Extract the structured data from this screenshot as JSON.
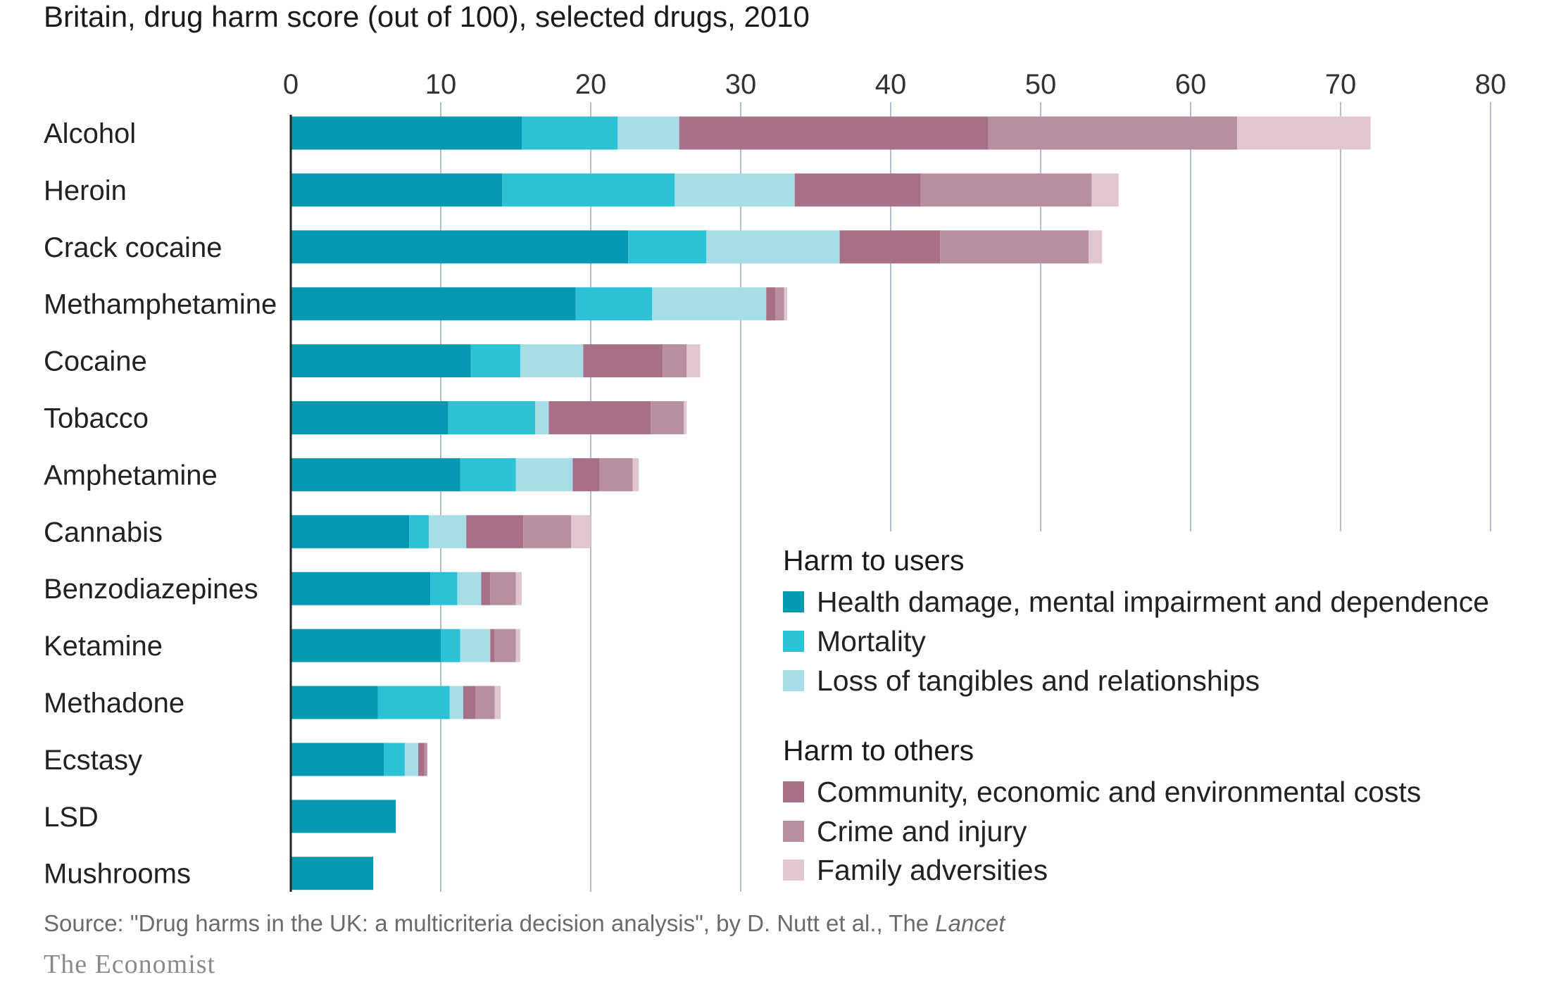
{
  "chart_data": {
    "type": "bar",
    "orientation": "horizontal",
    "stacked": true,
    "title": "Britain, drug harm score (out of 100), selected drugs, 2010",
    "xlim": [
      0,
      80
    ],
    "xticks": [
      "0",
      "10",
      "20",
      "30",
      "40",
      "50",
      "60",
      "70",
      "80"
    ],
    "grid": true,
    "categories": [
      "Alcohol",
      "Heroin",
      "Crack cocaine",
      "Methamphetamine",
      "Cocaine",
      "Tobacco",
      "Amphetamine",
      "Cannabis",
      "Benzodiazepines",
      "Ketamine",
      "Methadone",
      "Ecstasy",
      "LSD",
      "Mushrooms"
    ],
    "series": [
      {
        "name": "Health damage, mental impairment and dependence",
        "group": "Harm to users",
        "color": "#0598b2",
        "values": [
          15.4,
          14.1,
          22.5,
          19.0,
          12.0,
          10.5,
          11.3,
          7.9,
          9.3,
          10.0,
          5.8,
          6.2,
          7.0,
          5.5
        ]
      },
      {
        "name": "Mortality",
        "group": "Harm to users",
        "color": "#2dc1d6",
        "values": [
          6.4,
          11.5,
          5.2,
          5.1,
          3.3,
          5.8,
          3.7,
          1.3,
          1.8,
          1.3,
          4.8,
          1.4,
          0.0,
          0.0
        ]
      },
      {
        "name": "Loss of tangibles and relationships",
        "group": "Harm to users",
        "color": "#a7dee6",
        "values": [
          4.1,
          8.0,
          8.9,
          7.6,
          4.2,
          0.9,
          3.8,
          2.5,
          1.6,
          2.0,
          0.9,
          0.9,
          0.0,
          0.0
        ]
      },
      {
        "name": "Community, economic and environmental costs",
        "group": "Harm to others",
        "color": "#a87088",
        "values": [
          20.6,
          8.4,
          6.7,
          0.6,
          5.3,
          6.8,
          1.8,
          3.8,
          0.6,
          0.3,
          0.8,
          0.4,
          0.0,
          0.0
        ]
      },
      {
        "name": "Crime and injury",
        "group": "Harm to others",
        "color": "#b88fa1",
        "values": [
          16.6,
          11.4,
          9.9,
          0.6,
          1.6,
          2.2,
          2.2,
          3.2,
          1.7,
          1.4,
          1.3,
          0.2,
          0.0,
          0.0
        ]
      },
      {
        "name": "Family adversities",
        "group": "Harm to others",
        "color": "#dfc6d0",
        "values": [
          8.9,
          1.8,
          0.9,
          0.2,
          0.9,
          0.2,
          0.4,
          1.3,
          0.4,
          0.3,
          0.4,
          0.0,
          0.0,
          0.0
        ]
      }
    ],
    "legend": {
      "placement": "bottom-right",
      "groups": [
        {
          "heading": "Harm to users",
          "items": [
            0,
            1,
            2
          ]
        },
        {
          "heading": "Harm to others",
          "items": [
            3,
            4,
            5
          ]
        }
      ]
    }
  },
  "source": {
    "text": "Source: \"Drug harms in the UK: a multicriteria decision analysis\", by D. Nutt et al., The ",
    "italic": "Lancet"
  },
  "brand": "The Economist",
  "colors": {
    "grid": "#b3bfcc",
    "axis": "#222222"
  }
}
